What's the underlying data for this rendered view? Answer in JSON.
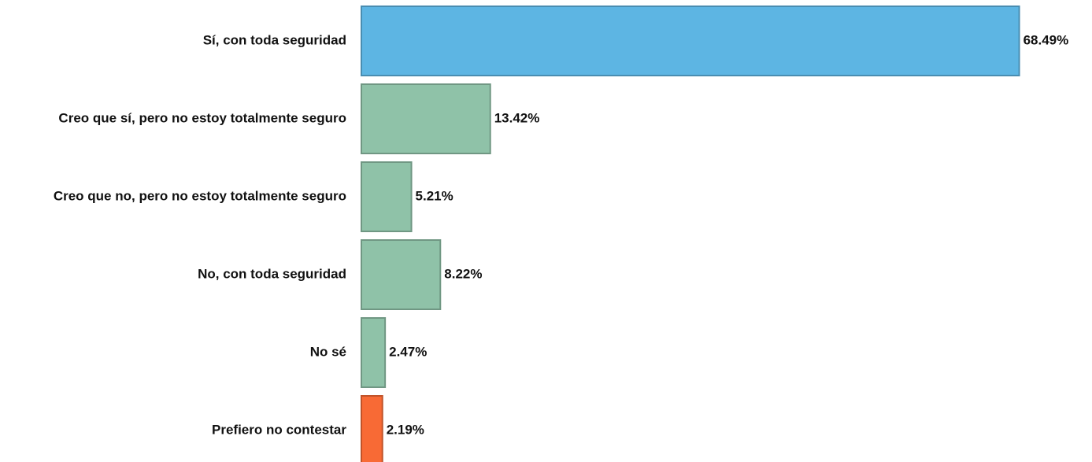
{
  "chart_data": {
    "type": "barh",
    "categories": [
      "Sí, con toda seguridad",
      "Creo que sí, pero no estoy totalmente seguro",
      "Creo que no, pero no estoy totalmente seguro",
      "No, con toda seguridad",
      "No sé",
      "Prefiero no contestar"
    ],
    "values": [
      68.49,
      13.42,
      5.21,
      8.22,
      2.47,
      2.19
    ],
    "value_labels": [
      "68.49%",
      "13.42%",
      "5.21%",
      "8.22%",
      "2.47%",
      "2.19%"
    ],
    "colors": [
      "#5db5e3",
      "#8fc2a8",
      "#8fc2a8",
      "#8fc2a8",
      "#8fc2a8",
      "#f86a35"
    ],
    "xlim": [
      0,
      70
    ]
  }
}
